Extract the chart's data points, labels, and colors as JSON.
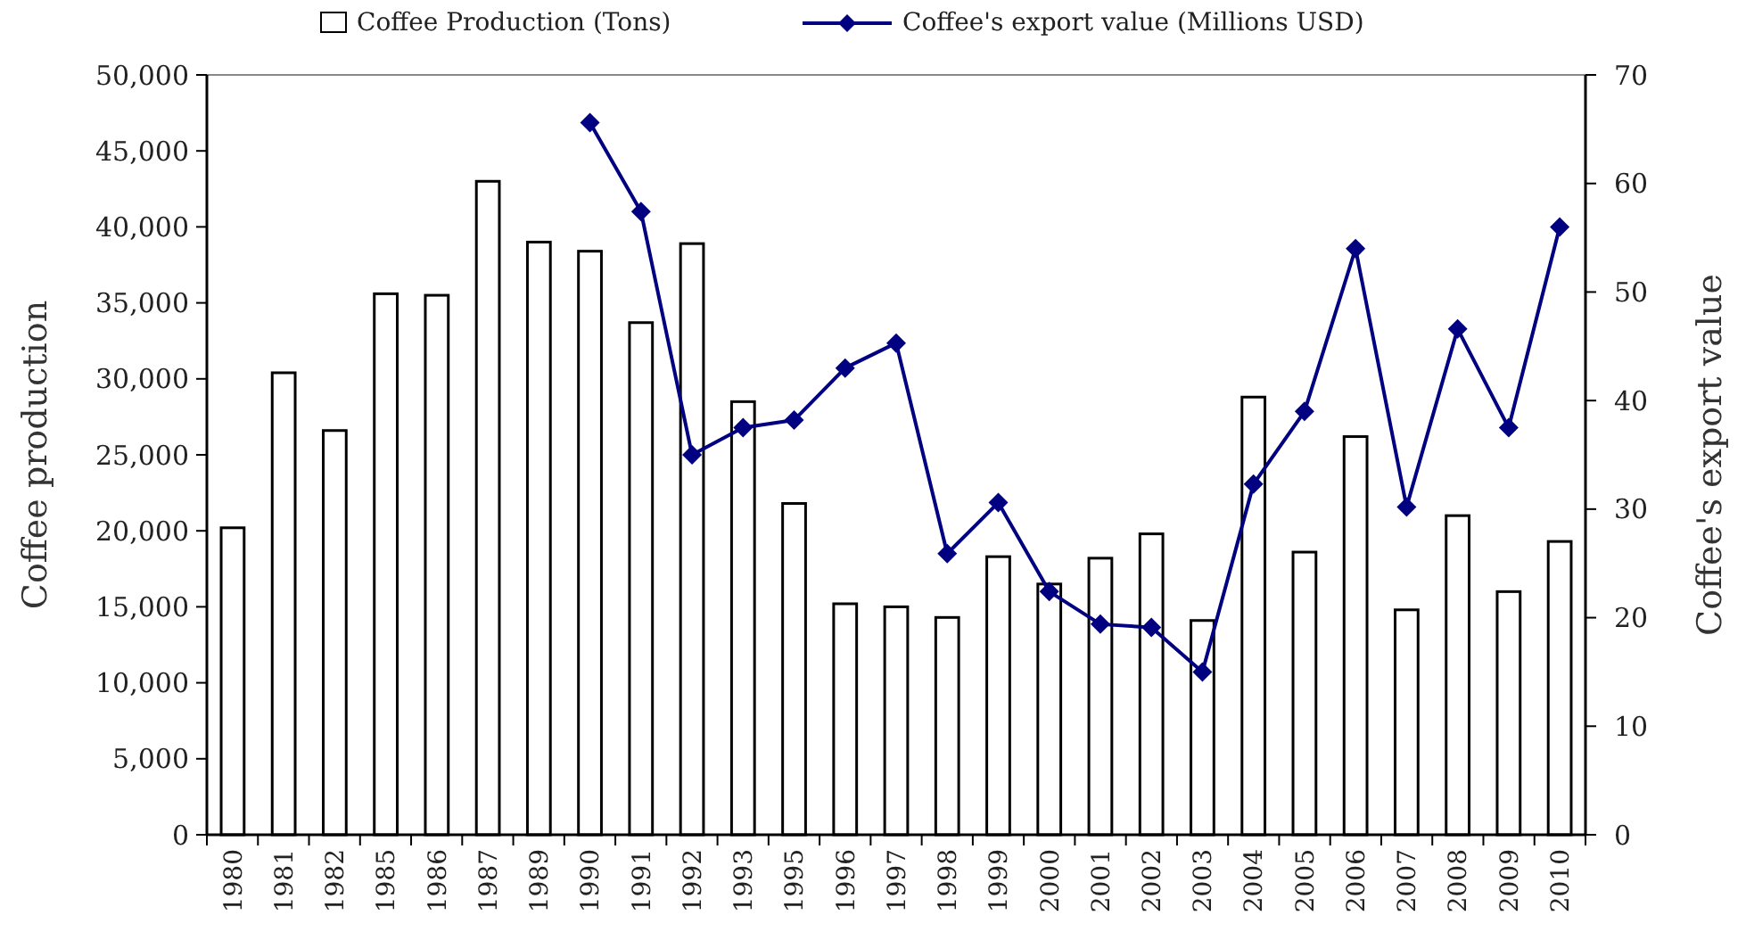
{
  "chart_data": {
    "type": "bar",
    "xlabel": null,
    "ylabel": "Coffee production",
    "y2label": "Coffee's export value",
    "categories": [
      "1980",
      "1981",
      "1982",
      "1985",
      "1986",
      "1987",
      "1989",
      "1990",
      "1991",
      "1992",
      "1993",
      "1995",
      "1996",
      "1997",
      "1998",
      "1999",
      "2000",
      "2001",
      "2002",
      "2003",
      "2004",
      "2005",
      "2006",
      "2007",
      "2008",
      "2009",
      "2010"
    ],
    "series": [
      {
        "name": "Coffee Production (Tons)",
        "color": "#ffffff",
        "values": [
          20200,
          30400,
          26600,
          35600,
          35500,
          43000,
          39000,
          38400,
          33700,
          38900,
          28500,
          21800,
          15200,
          15000,
          14300,
          18300,
          16500,
          18200,
          19800,
          14100,
          28800,
          18600,
          26200,
          14800,
          21000,
          16000,
          19300
        ]
      },
      {
        "name": "Coffee's export value (Millions USD)",
        "type": "line",
        "axis": "y2",
        "color": "#000080",
        "marker": "diamond",
        "values": [
          null,
          null,
          null,
          null,
          null,
          null,
          null,
          65.6,
          57.4,
          35,
          37.5,
          38.2,
          43,
          45.3,
          25.9,
          30.6,
          22.4,
          19.4,
          19.1,
          15,
          32.3,
          39,
          54,
          30.2,
          46.6,
          37.5,
          56
        ]
      }
    ],
    "ylim": [
      0,
      50000
    ],
    "yticks": [
      {
        "value": 0,
        "label": "0"
      },
      {
        "value": 5000,
        "label": "5,000"
      },
      {
        "value": 10000,
        "label": "10,000"
      },
      {
        "value": 15000,
        "label": "15,000"
      },
      {
        "value": 20000,
        "label": "20,000"
      },
      {
        "value": 25000,
        "label": "25,000"
      },
      {
        "value": 30000,
        "label": "30,000"
      },
      {
        "value": 35000,
        "label": "35,000"
      },
      {
        "value": 40000,
        "label": "40,000"
      },
      {
        "value": 45000,
        "label": "45,000"
      },
      {
        "value": 50000,
        "label": "50,000"
      }
    ],
    "y2lim": [
      0,
      70
    ],
    "y2ticks": [
      0,
      10,
      20,
      30,
      40,
      50,
      60,
      70
    ],
    "legend": "top",
    "grid": false
  }
}
